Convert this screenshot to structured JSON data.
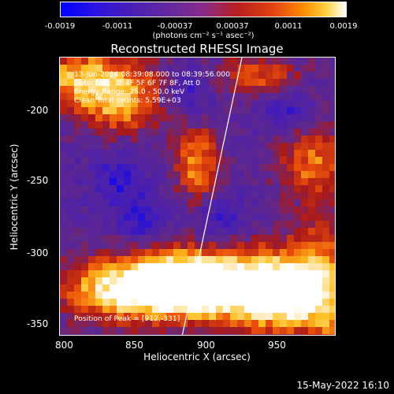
{
  "colorbar": {
    "ticks": [
      "-0.0019",
      "-0.0011",
      "-0.00037",
      "0.00037",
      "0.0011",
      "0.0019"
    ],
    "units": "(photons cm⁻² s⁻¹ asec⁻²)"
  },
  "title": "Reconstructed RHESSI Image",
  "annotations": {
    "time_range": "13-Jun-2014 08:39:08.000 to 08:39:56.000",
    "detectors": "Detectors: 3F 4F 5F 6F 7F 8F, Att 0",
    "energy_range": "Energy Range: 25.0 - 50.0 keV",
    "clean_counts": "Clean     Total counts: 5.59E+03",
    "peak_position": "Position of Peak = [912,-331]"
  },
  "axes": {
    "xlabel": "Heliocentric X (arcsec)",
    "ylabel": "Heliocentric Y (arcsec)",
    "xticks": [
      "800",
      "850",
      "900",
      "950"
    ],
    "yticks": [
      "-200",
      "-250",
      "-300",
      "-350"
    ],
    "xlim": [
      800,
      988
    ],
    "ylim": [
      -358,
      -164
    ]
  },
  "footer": {
    "date": "15-May-2022 16:10"
  }
}
